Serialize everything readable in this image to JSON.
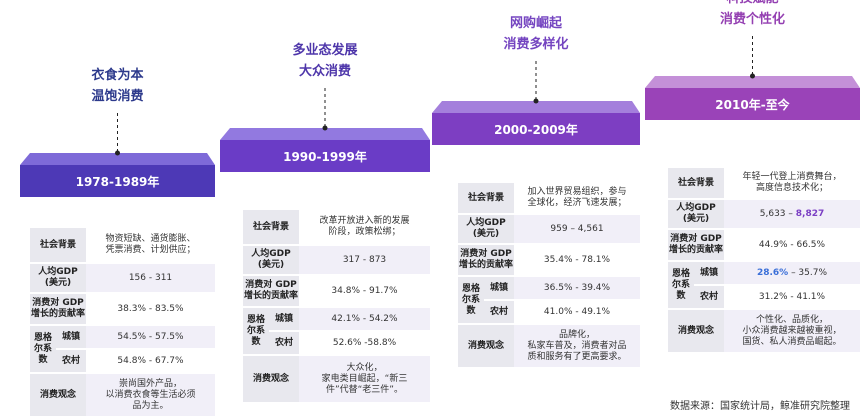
{
  "row_labels": {
    "background": "社会背景",
    "gdp": "人均GDP\n(美元)",
    "contribution": "消费对 GDP\n增长的贡献率",
    "engel": "恩格\n尔系\n数",
    "urban": "城镇",
    "rural": "农村",
    "concept": "消费观念"
  },
  "stages": [
    {
      "period": "1978-1989年",
      "title": "衣食为本\n温饱消费",
      "background": "物资短缺、通货膨胀、\n凭票消费、计划供应；",
      "gdp": "156 - 311",
      "contribution": "38.3% - 83.5%",
      "urban": "54.5% - 57.5%",
      "rural": "54.8% - 67.7%",
      "concept": "崇尚国外产品，\n以消费衣食等生活必须\n品为主。"
    },
    {
      "period": "1990-1999年",
      "title": "多业态发展\n大众消费",
      "background": "改革开放进入新的发展\n阶段，政策松绑；",
      "gdp": "317 - 873",
      "contribution": "34.8% - 91.7%",
      "urban": "42.1% - 54.2%",
      "rural": "52.6% -58.8%",
      "concept": "大众化，\n家电类目崛起，“新三\n件”代替“老三件”。"
    },
    {
      "period": "2000-2009年",
      "title": "网购崛起\n消费多样化",
      "background": "加入世界贸易组织，参与\n全球化，经济飞速发展；",
      "gdp": "959 – 4,561",
      "contribution": "35.4% - 78.1%",
      "urban": "36.5% - 39.4%",
      "rural": "41.0% - 49.1%",
      "concept": "品牌化，\n私家车普及，消费者对品\n质和服务有了更高要求。"
    },
    {
      "period": "2010年-至今",
      "title": "科技赋能\n消费个性化",
      "background": "年轻一代登上消费舞台，\n高度信息技术化；",
      "gdp": [
        {
          "text": "5,633 – "
        },
        {
          "text": "8,827",
          "color": "#7b3fc4"
        }
      ],
      "contribution": "44.9% - 66.5%",
      "urban": [
        {
          "text": "28.6%",
          "color": "#3a6fd8"
        },
        {
          "text": " – 35.7%"
        }
      ],
      "rural": "31.2% - 41.1%",
      "concept": "个性化、品质化，\n小众消费越来越被重视，\n国货、私人消费品崛起。"
    }
  ],
  "source": "数据来源：国家统计局，鲸准研究院整理"
}
